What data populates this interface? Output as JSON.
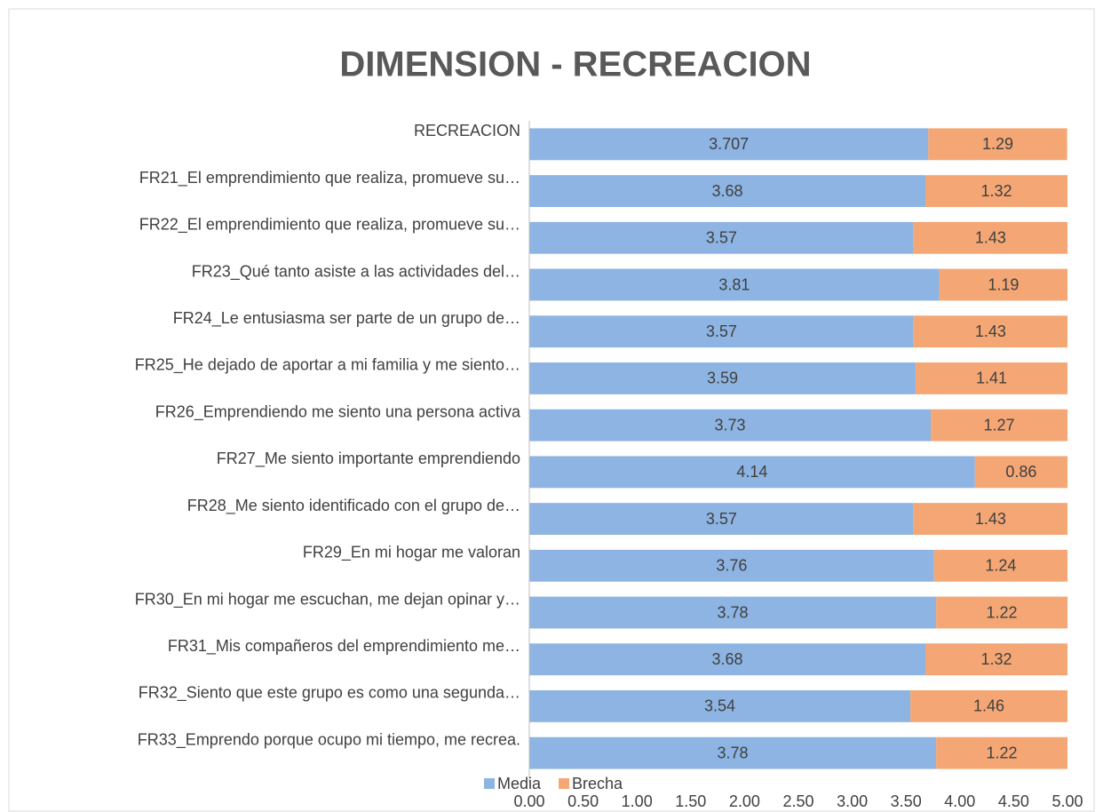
{
  "chart_data": {
    "type": "stacked-bar-horizontal",
    "title": "DIMENSION - RECREACION",
    "categories": [
      "RECREACION",
      "FR21_El emprendimiento que realiza, promueve su…",
      "FR22_El emprendimiento que realiza, promueve su…",
      "FR23_Qué tanto asiste a las actividades del…",
      "FR24_Le entusiasma ser parte de un grupo de…",
      "FR25_He dejado de aportar a mi familia y me siento…",
      "FR26_Emprendiendo me siento una persona activa",
      "FR27_Me siento importante emprendiendo",
      "FR28_Me siento identificado con el grupo de…",
      "FR29_En mi hogar me valoran",
      "FR30_En mi hogar me escuchan, me dejan opinar y…",
      "FR31_Mis compañeros del emprendimiento me…",
      "FR32_Siento que este grupo es como una segunda…",
      "FR33_Emprendo porque ocupo mi tiempo, me recrea."
    ],
    "series": [
      {
        "name": "Media",
        "color": "#8db4e2",
        "values": [
          3.707,
          3.68,
          3.57,
          3.81,
          3.57,
          3.59,
          3.73,
          4.14,
          3.57,
          3.76,
          3.78,
          3.68,
          3.54,
          3.78
        ]
      },
      {
        "name": "Brecha",
        "color": "#f4a774",
        "values": [
          1.29,
          1.32,
          1.43,
          1.19,
          1.43,
          1.41,
          1.27,
          0.86,
          1.43,
          1.24,
          1.22,
          1.32,
          1.46,
          1.22
        ]
      }
    ],
    "xlim": [
      0,
      5
    ],
    "xticks": [
      {
        "value": 0,
        "label": "0.00"
      },
      {
        "value": 0.5,
        "label": "0.50"
      },
      {
        "value": 1,
        "label": "1.00"
      },
      {
        "value": 1.5,
        "label": "1.50"
      },
      {
        "value": 2,
        "label": "2.00"
      },
      {
        "value": 2.5,
        "label": "2.50"
      },
      {
        "value": 3,
        "label": "3.00"
      },
      {
        "value": 3.5,
        "label": "3.50"
      },
      {
        "value": 4,
        "label": "4.00"
      },
      {
        "value": 4.5,
        "label": "4.50"
      },
      {
        "value": 5,
        "label": "5.00"
      }
    ],
    "grid": false,
    "legend": "bottom"
  }
}
